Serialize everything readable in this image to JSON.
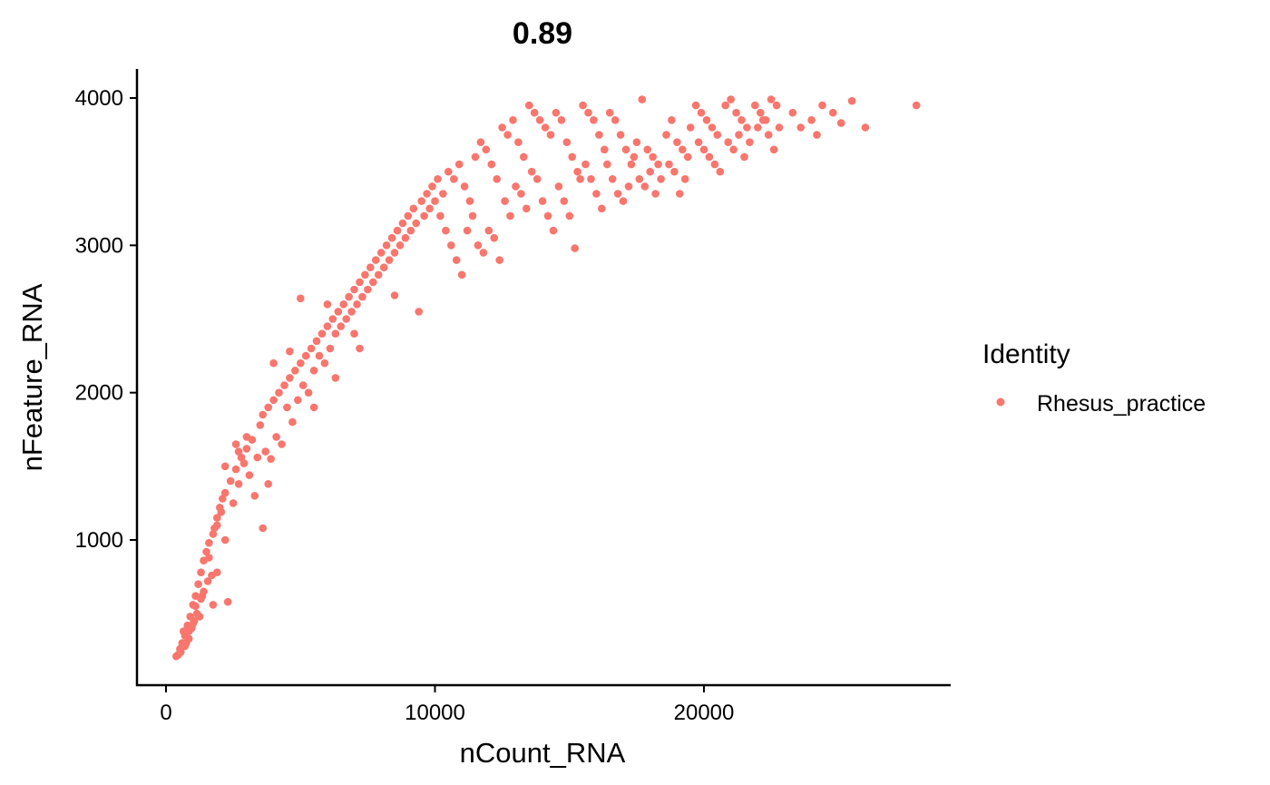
{
  "chart_data": {
    "type": "scatter",
    "title": "0.89",
    "xlabel": "nCount_RNA",
    "ylabel": "nFeature_RNA",
    "xlim": [
      -1000,
      29000
    ],
    "ylim": [
      150,
      4200
    ],
    "x_ticks": [
      0,
      10000,
      20000
    ],
    "x_tick_labels": [
      "0",
      "10000",
      "20000"
    ],
    "y_ticks": [
      1000,
      2000,
      3000,
      4000
    ],
    "y_tick_labels": [
      "1000",
      "2000",
      "3000",
      "4000"
    ],
    "grid": false,
    "legend": {
      "title": "Identity",
      "placement": "right"
    },
    "series": [
      {
        "name": "Rhesus_practice",
        "color": "#F8766D",
        "points": [
          [
            450,
            220
          ],
          [
            520,
            260
          ],
          [
            600,
            300
          ],
          [
            380,
            210
          ],
          [
            700,
            350
          ],
          [
            800,
            420
          ],
          [
            650,
            380
          ],
          [
            900,
            480
          ],
          [
            1000,
            560
          ],
          [
            1100,
            620
          ],
          [
            1200,
            700
          ],
          [
            1300,
            780
          ],
          [
            1400,
            860
          ],
          [
            1500,
            920
          ],
          [
            1600,
            980
          ],
          [
            1800,
            1080
          ],
          [
            1900,
            1150
          ],
          [
            2000,
            1220
          ],
          [
            2100,
            1280
          ],
          [
            2200,
            1320
          ],
          [
            550,
            240
          ],
          [
            750,
            300
          ],
          [
            950,
            400
          ],
          [
            1150,
            500
          ],
          [
            1350,
            620
          ],
          [
            1700,
            760
          ],
          [
            2300,
            580
          ],
          [
            1250,
            480
          ],
          [
            1050,
            450
          ],
          [
            850,
            330
          ],
          [
            2400,
            1400
          ],
          [
            2600,
            1480
          ],
          [
            2800,
            1560
          ],
          [
            3000,
            1620
          ],
          [
            3200,
            1680
          ],
          [
            2500,
            1250
          ],
          [
            2700,
            1380
          ],
          [
            2900,
            1520
          ],
          [
            3100,
            1440
          ],
          [
            3300,
            1300
          ],
          [
            3500,
            1780
          ],
          [
            3600,
            1850
          ],
          [
            3800,
            1900
          ],
          [
            4000,
            1950
          ],
          [
            4200,
            2000
          ],
          [
            3700,
            1600
          ],
          [
            3900,
            1550
          ],
          [
            4100,
            1700
          ],
          [
            3600,
            1080
          ],
          [
            3800,
            1380
          ],
          [
            4400,
            2050
          ],
          [
            4600,
            2100
          ],
          [
            4800,
            2150
          ],
          [
            5000,
            2200
          ],
          [
            5200,
            2250
          ],
          [
            4500,
            1900
          ],
          [
            4700,
            1800
          ],
          [
            4900,
            1950
          ],
          [
            5100,
            2050
          ],
          [
            5300,
            2000
          ],
          [
            5400,
            2300
          ],
          [
            5600,
            2350
          ],
          [
            5800,
            2400
          ],
          [
            6000,
            2450
          ],
          [
            6200,
            2500
          ],
          [
            5500,
            2150
          ],
          [
            5700,
            2250
          ],
          [
            5900,
            2200
          ],
          [
            6100,
            2300
          ],
          [
            6300,
            2400
          ],
          [
            6400,
            2550
          ],
          [
            6600,
            2600
          ],
          [
            6800,
            2650
          ],
          [
            7000,
            2700
          ],
          [
            7200,
            2750
          ],
          [
            6500,
            2450
          ],
          [
            6700,
            2500
          ],
          [
            6900,
            2550
          ],
          [
            7100,
            2600
          ],
          [
            7300,
            2650
          ],
          [
            7400,
            2800
          ],
          [
            7600,
            2850
          ],
          [
            7800,
            2900
          ],
          [
            8000,
            2950
          ],
          [
            8200,
            3000
          ],
          [
            7500,
            2700
          ],
          [
            7700,
            2750
          ],
          [
            7900,
            2800
          ],
          [
            8100,
            2850
          ],
          [
            8300,
            2900
          ],
          [
            8400,
            3050
          ],
          [
            8600,
            3100
          ],
          [
            8800,
            3150
          ],
          [
            9000,
            3200
          ],
          [
            9200,
            3250
          ],
          [
            8500,
            2950
          ],
          [
            8700,
            3000
          ],
          [
            8900,
            3050
          ],
          [
            9100,
            3100
          ],
          [
            9300,
            3150
          ],
          [
            9500,
            3300
          ],
          [
            9700,
            3350
          ],
          [
            9900,
            3400
          ],
          [
            10100,
            3450
          ],
          [
            10300,
            3350
          ],
          [
            9600,
            3200
          ],
          [
            9800,
            3250
          ],
          [
            10000,
            3300
          ],
          [
            10200,
            3200
          ],
          [
            10400,
            3100
          ],
          [
            10500,
            3500
          ],
          [
            10700,
            3450
          ],
          [
            10900,
            3550
          ],
          [
            11100,
            3400
          ],
          [
            11300,
            3300
          ],
          [
            10600,
            3000
          ],
          [
            10800,
            2900
          ],
          [
            11000,
            2800
          ],
          [
            11200,
            3100
          ],
          [
            11400,
            3200
          ],
          [
            11500,
            3600
          ],
          [
            11700,
            3700
          ],
          [
            11900,
            3650
          ],
          [
            12100,
            3550
          ],
          [
            12300,
            3450
          ],
          [
            11600,
            3000
          ],
          [
            11800,
            2950
          ],
          [
            12000,
            3100
          ],
          [
            12200,
            3050
          ],
          [
            12400,
            2900
          ],
          [
            12500,
            3800
          ],
          [
            12700,
            3750
          ],
          [
            12900,
            3850
          ],
          [
            13100,
            3700
          ],
          [
            13300,
            3600
          ],
          [
            12600,
            3300
          ],
          [
            12800,
            3200
          ],
          [
            13000,
            3400
          ],
          [
            13200,
            3350
          ],
          [
            13400,
            3250
          ],
          [
            13500,
            3950
          ],
          [
            13700,
            3900
          ],
          [
            13900,
            3850
          ],
          [
            14100,
            3800
          ],
          [
            14300,
            3750
          ],
          [
            13600,
            3500
          ],
          [
            13800,
            3450
          ],
          [
            14000,
            3300
          ],
          [
            14200,
            3200
          ],
          [
            14400,
            3100
          ],
          [
            14500,
            3900
          ],
          [
            14700,
            3850
          ],
          [
            14900,
            3700
          ],
          [
            15100,
            3600
          ],
          [
            15300,
            3500
          ],
          [
            14600,
            3400
          ],
          [
            14800,
            3300
          ],
          [
            15000,
            3200
          ],
          [
            15200,
            2980
          ],
          [
            15400,
            3450
          ],
          [
            15500,
            3950
          ],
          [
            15700,
            3900
          ],
          [
            15900,
            3850
          ],
          [
            16100,
            3750
          ],
          [
            16300,
            3650
          ],
          [
            15600,
            3550
          ],
          [
            15800,
            3450
          ],
          [
            16000,
            3350
          ],
          [
            16200,
            3250
          ],
          [
            16400,
            3550
          ],
          [
            16500,
            3900
          ],
          [
            16700,
            3850
          ],
          [
            16900,
            3750
          ],
          [
            17100,
            3650
          ],
          [
            17300,
            3550
          ],
          [
            16600,
            3450
          ],
          [
            16800,
            3350
          ],
          [
            17000,
            3300
          ],
          [
            17200,
            3400
          ],
          [
            17400,
            3600
          ],
          [
            17500,
            3700
          ],
          [
            17700,
            3990
          ],
          [
            17900,
            3650
          ],
          [
            18100,
            3600
          ],
          [
            18300,
            3550
          ],
          [
            17600,
            3450
          ],
          [
            17800,
            3400
          ],
          [
            18000,
            3500
          ],
          [
            18200,
            3350
          ],
          [
            18400,
            3450
          ],
          [
            18600,
            3750
          ],
          [
            18800,
            3850
          ],
          [
            19000,
            3700
          ],
          [
            19200,
            3650
          ],
          [
            19400,
            3600
          ],
          [
            18700,
            3550
          ],
          [
            18900,
            3500
          ],
          [
            19100,
            3350
          ],
          [
            19300,
            3450
          ],
          [
            19500,
            3800
          ],
          [
            19700,
            3950
          ],
          [
            19900,
            3900
          ],
          [
            20100,
            3850
          ],
          [
            20300,
            3800
          ],
          [
            20500,
            3750
          ],
          [
            19800,
            3700
          ],
          [
            20000,
            3650
          ],
          [
            20200,
            3600
          ],
          [
            20400,
            3550
          ],
          [
            20600,
            3500
          ],
          [
            20800,
            3950
          ],
          [
            21000,
            3990
          ],
          [
            21200,
            3900
          ],
          [
            21400,
            3850
          ],
          [
            21600,
            3800
          ],
          [
            20900,
            3700
          ],
          [
            21100,
            3650
          ],
          [
            21300,
            3750
          ],
          [
            21500,
            3600
          ],
          [
            21700,
            3700
          ],
          [
            21900,
            3950
          ],
          [
            22100,
            3900
          ],
          [
            22300,
            3850
          ],
          [
            22500,
            3990
          ],
          [
            22700,
            3950
          ],
          [
            22000,
            3800
          ],
          [
            22200,
            3850
          ],
          [
            22400,
            3750
          ],
          [
            22600,
            3650
          ],
          [
            22800,
            3800
          ],
          [
            23300,
            3900
          ],
          [
            23600,
            3800
          ],
          [
            24000,
            3850
          ],
          [
            24400,
            3950
          ],
          [
            24800,
            3900
          ],
          [
            24200,
            3750
          ],
          [
            25100,
            3830
          ],
          [
            25500,
            3980
          ],
          [
            26000,
            3800
          ],
          [
            27900,
            3950
          ],
          [
            5000,
            2640
          ],
          [
            4000,
            2200
          ],
          [
            4600,
            2280
          ],
          [
            6000,
            2600
          ],
          [
            8500,
            2660
          ],
          [
            7000,
            2400
          ],
          [
            5500,
            1900
          ],
          [
            6300,
            2100
          ],
          [
            7200,
            2300
          ],
          [
            9400,
            2550
          ],
          [
            3000,
            1700
          ],
          [
            2600,
            1650
          ],
          [
            2200,
            1500
          ],
          [
            2700,
            1600
          ],
          [
            1900,
            1100
          ],
          [
            1600,
            880
          ],
          [
            1750,
            1040
          ],
          [
            2050,
            1190
          ],
          [
            3400,
            1560
          ],
          [
            4300,
            1650
          ],
          [
            1400,
            650
          ],
          [
            1550,
            720
          ],
          [
            1750,
            560
          ],
          [
            2200,
            1000
          ],
          [
            1900,
            780
          ],
          [
            1100,
            550
          ],
          [
            1300,
            600
          ],
          [
            1000,
            430
          ],
          [
            850,
            380
          ],
          [
            700,
            280
          ]
        ]
      }
    ]
  }
}
